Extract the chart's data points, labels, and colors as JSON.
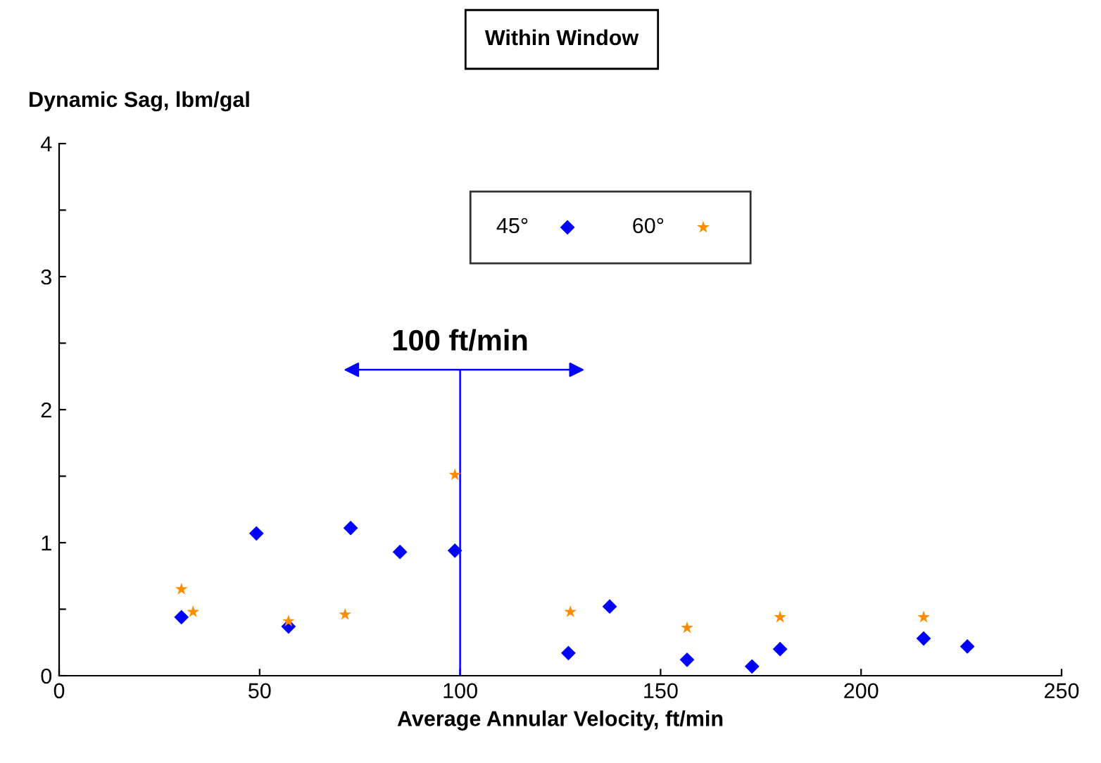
{
  "chart_data": {
    "type": "scatter",
    "title": "Within Window",
    "xlabel": "Average Annular Velocity, ft/min",
    "ylabel": "Dynamic Sag, lbm/gal",
    "xlim": [
      0,
      250
    ],
    "xticks": [
      0,
      50,
      100,
      150,
      200,
      250
    ],
    "ylim": [
      0,
      4
    ],
    "yticks": [
      0,
      {
        "value": 0.5,
        "label": null
      },
      1,
      {
        "value": 1.5,
        "label": null
      },
      2,
      {
        "value": 2.5,
        "label": null
      },
      3,
      {
        "value": 3.5,
        "label": null
      },
      4
    ],
    "grid": false,
    "legend": "top",
    "ref_lines": [
      {
        "axis": "x",
        "value": 100,
        "label": "100 ft/min",
        "color": "#0000ff"
      }
    ],
    "series": [
      {
        "name": "45°",
        "color": "#0000ff",
        "marker": "diamond",
        "x": [
          30.5,
          49.2,
          57.2,
          72.7,
          85,
          98.7,
          127,
          137.3,
          156.6,
          172.8,
          179.8,
          215.6,
          226.5
        ],
        "values": [
          0.44,
          1.07,
          0.37,
          1.11,
          0.93,
          0.94,
          0.17,
          0.52,
          0.12,
          0.07,
          0.2,
          0.28,
          0.22
        ]
      },
      {
        "name": "60°",
        "color": "#ff8c00",
        "marker": "star",
        "x": [
          30.5,
          33.4,
          57.2,
          71.3,
          98.7,
          127.5,
          156.6,
          179.8,
          215.6
        ],
        "values": [
          0.65,
          0.48,
          0.41,
          0.46,
          1.51,
          0.48,
          0.36,
          0.44,
          0.44
        ]
      }
    ]
  }
}
